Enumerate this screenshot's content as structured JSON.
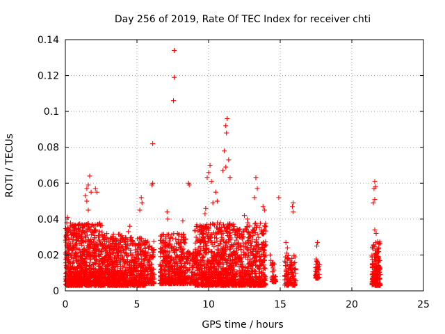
{
  "chart_data": {
    "type": "scatter",
    "title": "Day 256 of 2019, Rate Of TEC Index for receiver chti",
    "xlabel": "GPS time / hours",
    "ylabel": "ROTI / TECUs",
    "xlim": [
      0,
      25
    ],
    "ylim": [
      0,
      0.14
    ],
    "xticks": [
      0,
      5,
      10,
      15,
      20,
      25
    ],
    "yticks": [
      0,
      0.02,
      0.04,
      0.06,
      0.08,
      0.1,
      0.12,
      0.14
    ],
    "xtick_labels": [
      "0",
      "5",
      "10",
      "15",
      "20",
      "25"
    ],
    "ytick_labels": [
      "0",
      "0.02",
      "0.04",
      "0.06",
      "0.08",
      "0.1",
      "0.12",
      "0.14"
    ],
    "grid": true,
    "marker": "+",
    "color": "#ff0000",
    "series": [
      {
        "name": "ROTI",
        "points": [
          [
            7.6,
            0.134
          ],
          [
            7.6,
            0.119
          ],
          [
            7.55,
            0.106
          ],
          [
            6.1,
            0.082
          ],
          [
            6.1,
            0.06
          ],
          [
            6.05,
            0.059
          ],
          [
            11.3,
            0.096
          ],
          [
            11.2,
            0.092
          ],
          [
            11.25,
            0.088
          ],
          [
            11.1,
            0.078
          ],
          [
            11.4,
            0.073
          ],
          [
            11.2,
            0.069
          ],
          [
            10.1,
            0.07
          ],
          [
            10.0,
            0.066
          ],
          [
            9.9,
            0.063
          ],
          [
            10.2,
            0.061
          ],
          [
            11.0,
            0.067
          ],
          [
            11.5,
            0.063
          ],
          [
            13.3,
            0.063
          ],
          [
            13.4,
            0.057
          ],
          [
            13.2,
            0.052
          ],
          [
            8.6,
            0.06
          ],
          [
            8.65,
            0.059
          ],
          [
            1.7,
            0.064
          ],
          [
            1.6,
            0.059
          ],
          [
            1.5,
            0.057
          ],
          [
            1.8,
            0.055
          ],
          [
            2.1,
            0.057
          ],
          [
            2.2,
            0.055
          ],
          [
            1.4,
            0.053
          ],
          [
            1.5,
            0.05
          ],
          [
            1.6,
            0.045
          ],
          [
            14.9,
            0.052
          ],
          [
            15.9,
            0.049
          ],
          [
            15.85,
            0.047
          ],
          [
            15.9,
            0.044
          ],
          [
            21.6,
            0.061
          ],
          [
            21.65,
            0.058
          ],
          [
            21.55,
            0.057
          ],
          [
            21.6,
            0.051
          ],
          [
            21.5,
            0.049
          ],
          [
            21.6,
            0.034
          ],
          [
            21.7,
            0.032
          ],
          [
            17.6,
            0.027
          ],
          [
            17.55,
            0.025
          ],
          [
            5.3,
            0.052
          ],
          [
            5.35,
            0.049
          ],
          [
            5.2,
            0.045
          ],
          [
            7.1,
            0.044
          ],
          [
            7.15,
            0.04
          ],
          [
            0.15,
            0.041
          ],
          [
            0.1,
            0.038
          ],
          [
            4.5,
            0.036
          ],
          [
            4.4,
            0.033
          ],
          [
            12.5,
            0.042
          ],
          [
            12.7,
            0.04
          ],
          [
            13.8,
            0.047
          ],
          [
            13.9,
            0.045
          ],
          [
            8.2,
            0.039
          ],
          [
            9.8,
            0.046
          ],
          [
            9.75,
            0.043
          ],
          [
            10.3,
            0.049
          ],
          [
            10.5,
            0.055
          ],
          [
            10.6,
            0.05
          ],
          [
            15.4,
            0.027
          ],
          [
            15.5,
            0.024
          ],
          [
            15.45,
            0.021
          ],
          [
            14.3,
            0.02
          ],
          [
            14.35,
            0.017
          ]
        ]
      }
    ],
    "clusters": [
      {
        "x": [
          0.0,
          2.6
        ],
        "y": [
          0.003,
          0.038
        ],
        "n": 900
      },
      {
        "x": [
          2.6,
          4.0
        ],
        "y": [
          0.003,
          0.032
        ],
        "n": 420
      },
      {
        "x": [
          4.0,
          5.6
        ],
        "y": [
          0.003,
          0.03
        ],
        "n": 380
      },
      {
        "x": [
          5.6,
          6.2
        ],
        "y": [
          0.004,
          0.028
        ],
        "n": 120
      },
      {
        "x": [
          6.6,
          8.4
        ],
        "y": [
          0.004,
          0.032
        ],
        "n": 450
      },
      {
        "x": [
          8.4,
          9.0
        ],
        "y": [
          0.004,
          0.022
        ],
        "n": 80
      },
      {
        "x": [
          9.0,
          14.0
        ],
        "y": [
          0.003,
          0.038
        ],
        "n": 1300
      },
      {
        "x": [
          14.4,
          14.7
        ],
        "y": [
          0.005,
          0.016
        ],
        "n": 40
      },
      {
        "x": [
          15.3,
          16.1
        ],
        "y": [
          0.003,
          0.02
        ],
        "n": 110
      },
      {
        "x": [
          17.45,
          17.75
        ],
        "y": [
          0.007,
          0.018
        ],
        "n": 50
      },
      {
        "x": [
          21.4,
          22.0
        ],
        "y": [
          0.003,
          0.028
        ],
        "n": 200
      }
    ]
  }
}
